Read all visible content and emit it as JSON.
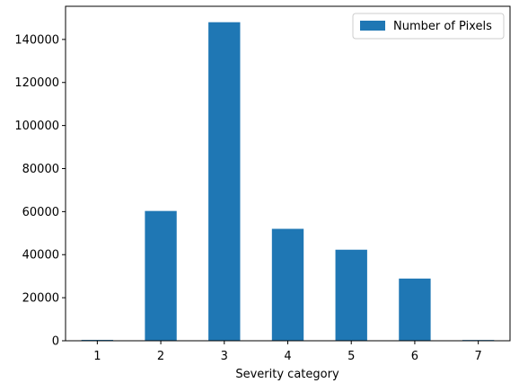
{
  "chart_data": {
    "type": "bar",
    "categories": [
      "1",
      "2",
      "3",
      "4",
      "5",
      "6",
      "7"
    ],
    "series": [
      {
        "name": "Number of Pixels",
        "values": [
          400,
          60300,
          148000,
          52000,
          42300,
          28900,
          350
        ]
      }
    ],
    "xlabel": "Severity category",
    "ylabel": "",
    "ylim": [
      0,
      155400
    ],
    "yticks": [
      0,
      20000,
      40000,
      60000,
      80000,
      100000,
      120000,
      140000
    ],
    "legend_position": "top-right",
    "grid": false,
    "bar_color": "#1f77b4"
  }
}
